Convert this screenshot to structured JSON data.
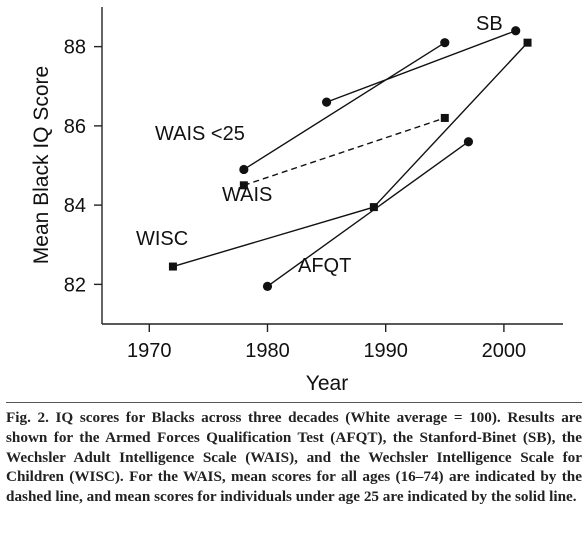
{
  "chart_data": {
    "type": "line",
    "xlabel": "Year",
    "ylabel": "Mean Black IQ Score",
    "xlim": [
      1966,
      2005
    ],
    "ylim": [
      81.0,
      89.0
    ],
    "xticks": [
      1970,
      1980,
      1990,
      2000
    ],
    "yticks": [
      82,
      84,
      86,
      88
    ],
    "grid": false,
    "legend": "none",
    "series": [
      {
        "name": "SB",
        "marker": "circle",
        "style": "solid",
        "x": [
          1985,
          2001
        ],
        "y": [
          86.6,
          88.4
        ]
      },
      {
        "name": "WAIS <25",
        "marker": "circle",
        "style": "solid",
        "x": [
          1978,
          1995
        ],
        "y": [
          84.9,
          88.1
        ]
      },
      {
        "name": "WAIS",
        "marker": "square",
        "style": "dashed",
        "x": [
          1978,
          1995
        ],
        "y": [
          84.5,
          86.2
        ]
      },
      {
        "name": "WISC",
        "marker": "square",
        "style": "solid",
        "x": [
          1972,
          1989,
          2002
        ],
        "y": [
          82.45,
          83.95,
          88.1
        ]
      },
      {
        "name": "AFQT",
        "marker": "circle",
        "style": "solid",
        "x": [
          1980,
          1997
        ],
        "y": [
          81.95,
          85.6
        ]
      }
    ]
  },
  "caption": {
    "label": "Fig. 2.",
    "text": "IQ scores for Blacks across three decades (White average = 100). Results are shown for the Armed Forces Qualification Test (AFQT), the Stanford-Binet (SB), the Wechsler Adult Intelligence Scale (WAIS), and the Wechsler Intelligence Scale for Children (WISC). For the WAIS, mean scores for all ages (16–74) are indicated by the dashed line, and mean scores for individuals under age 25 are indicated by the solid line."
  }
}
